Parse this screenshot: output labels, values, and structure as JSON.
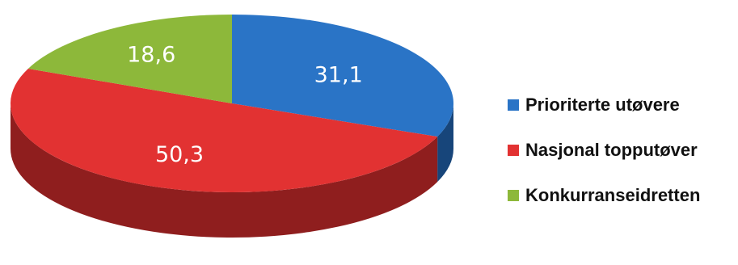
{
  "chart_data": {
    "type": "pie",
    "three_d": true,
    "start": "12 o'clock",
    "direction": "clockwise",
    "slices": [
      {
        "label": "Prioriterte utøvere",
        "value": 31.1,
        "display": "31,1",
        "color": "#2a74c6",
        "side_color": "#17457a"
      },
      {
        "label": "Nasjonal topputøver",
        "value": 50.3,
        "display": "50,3",
        "color": "#e23232",
        "side_color": "#8f1e1e"
      },
      {
        "label": "Konkurranseidretten",
        "value": 18.6,
        "display": "18,6",
        "color": "#8db83a",
        "side_color": "#567023"
      }
    ],
    "legend": {
      "position": "right",
      "items": [
        "Prioriterte utøvere",
        "Nasjonal topputøver",
        "Konkurranseidretten"
      ]
    }
  }
}
